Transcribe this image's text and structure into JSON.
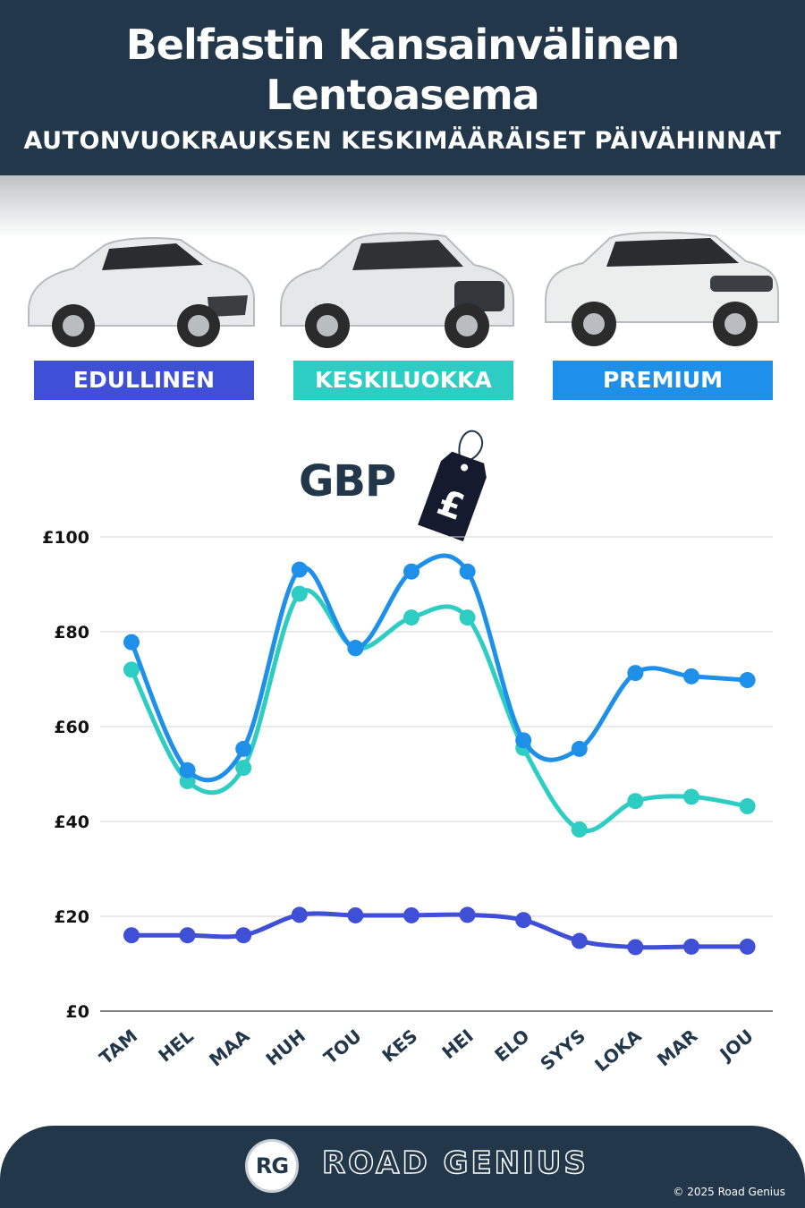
{
  "header": {
    "title_line1": "Belfastin Kansainvälinen",
    "title_line2": "Lentoasema",
    "subtitle": "AUTONVUOKRAUKSEN KESKIMÄÄRÄISET PÄIVÄHINNAT"
  },
  "categories": [
    {
      "label": "EDULLINEN",
      "color": "#3f4fd6"
    },
    {
      "label": "KESKILUOKKA",
      "color": "#2ecdc4"
    },
    {
      "label": "PREMIUM",
      "color": "#1e90ea"
    }
  ],
  "currency": {
    "label": "GBP",
    "symbol": "£",
    "icon": "price-tag-icon"
  },
  "chart_data": {
    "type": "line",
    "categories": [
      "TAM",
      "HEL",
      "MAA",
      "HUH",
      "TOU",
      "KES",
      "HEI",
      "ELO",
      "SYYS",
      "LOKA",
      "MAR",
      "JOU"
    ],
    "series": [
      {
        "name": "EDULLINEN",
        "color": "#3f4fd6",
        "values": [
          16,
          16,
          16,
          20.3,
          20.2,
          20.2,
          20.3,
          19.2,
          14.8,
          13.5,
          13.6,
          13.6
        ]
      },
      {
        "name": "KESKILUOKKA",
        "color": "#2ecdc4",
        "values": [
          72,
          48.5,
          51.3,
          88,
          76.5,
          83,
          83,
          55.5,
          38.3,
          44.3,
          45.2,
          43.2
        ]
      },
      {
        "name": "PREMIUM",
        "color": "#1e90ea",
        "values": [
          77.8,
          50.8,
          55.3,
          93.1,
          76.6,
          92.7,
          92.7,
          57.1,
          55.3,
          71.3,
          70.6,
          69.8
        ]
      }
    ],
    "ylim": [
      0,
      100
    ],
    "yticks": [
      "£0",
      "£20",
      "£40",
      "£60",
      "£80",
      "£100"
    ],
    "ytick_values": [
      0,
      20,
      40,
      60,
      80,
      100
    ],
    "grid": true
  },
  "footer": {
    "logo": "RG",
    "brand": "ROAD GENIUS",
    "copyright": "© 2025 Road Genius"
  }
}
